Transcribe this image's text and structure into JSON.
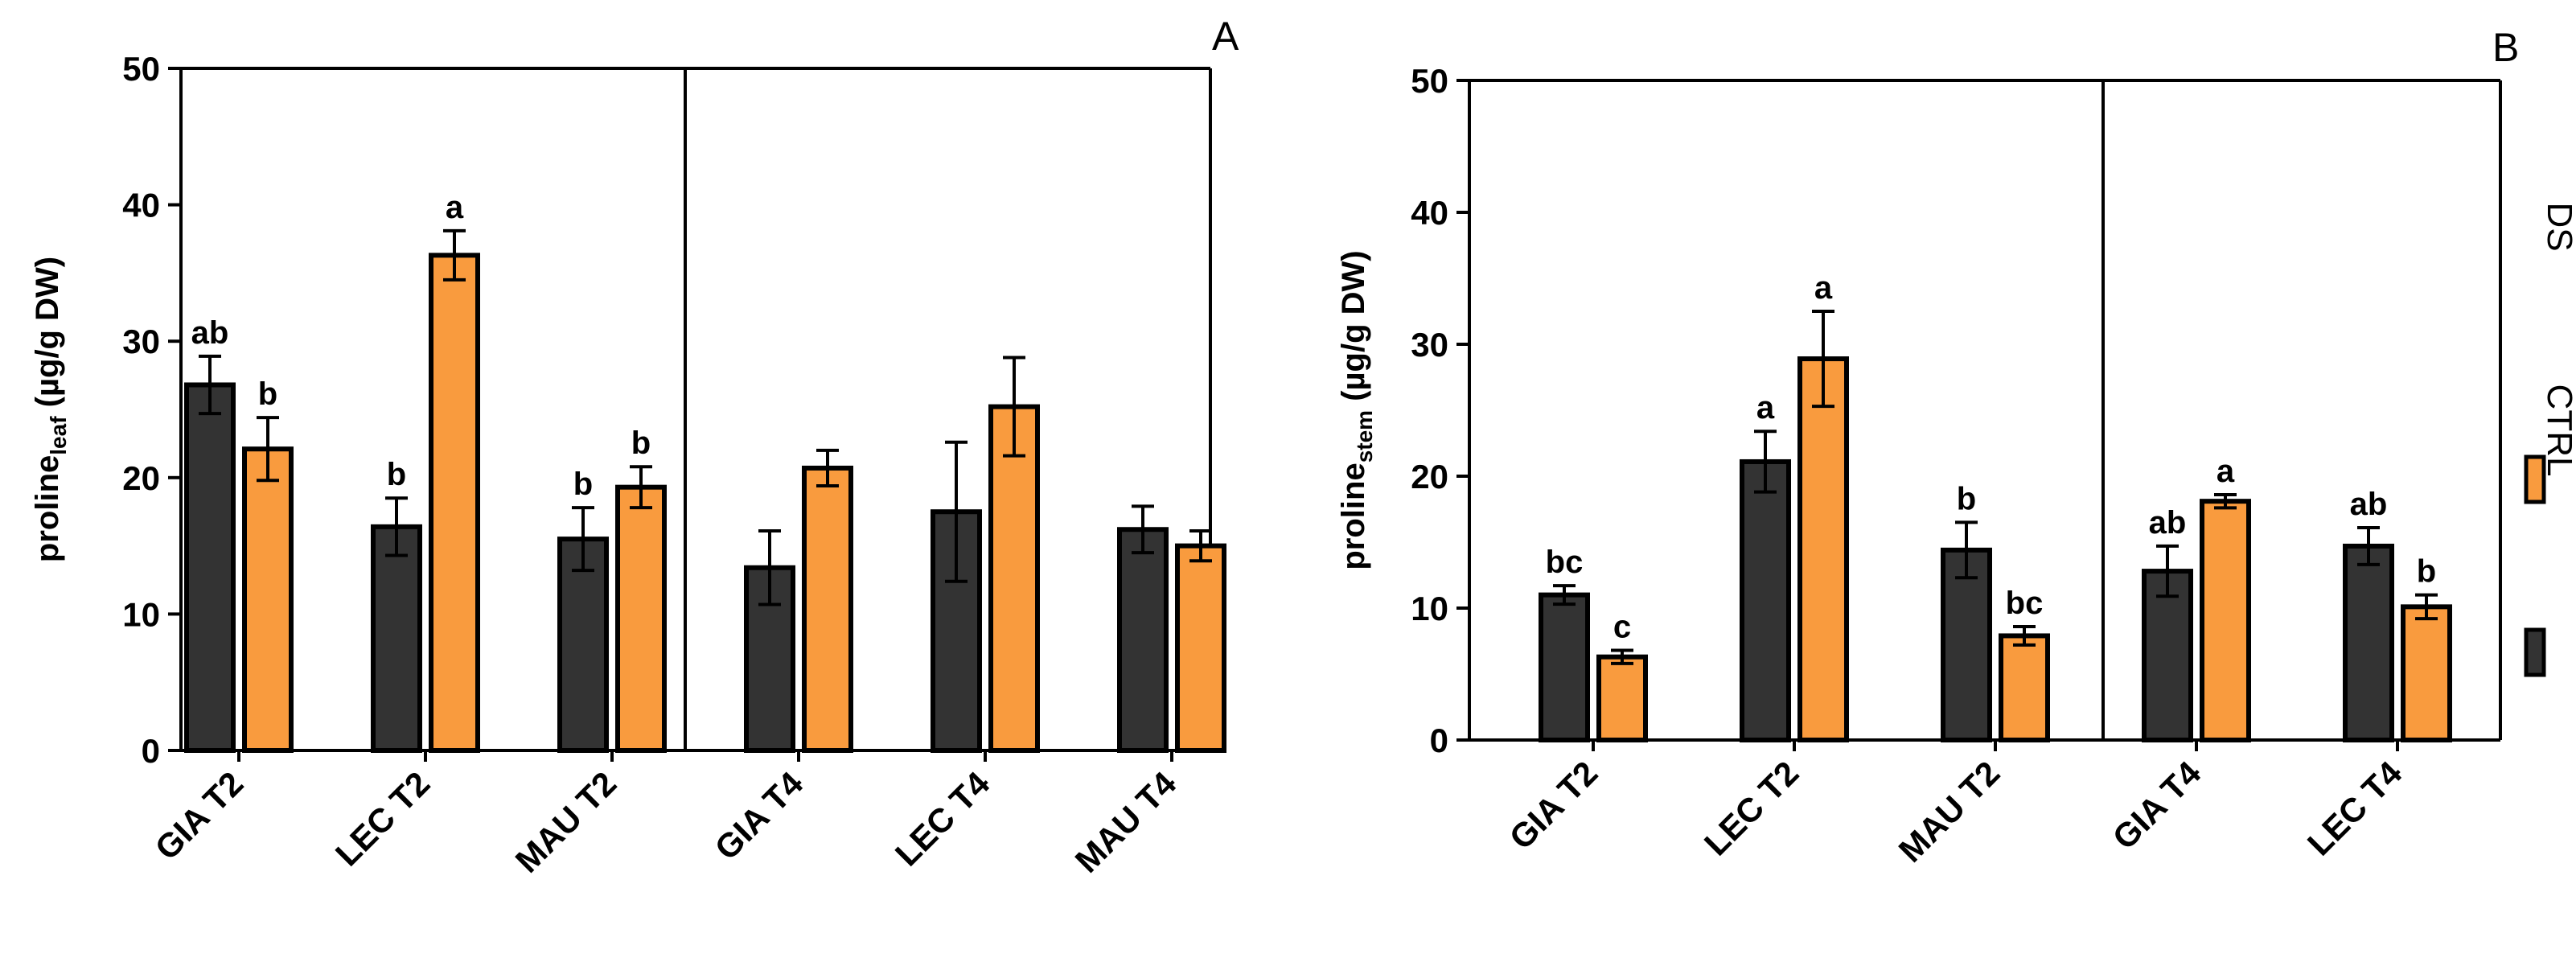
{
  "chart_data": [
    {
      "panel": "A",
      "type": "bar",
      "ylabel": "proline",
      "ylabel_sub": "leaf",
      "ylabel_unit": " (µg/g DW)",
      "ylim": [
        0,
        50
      ],
      "yticks": [
        "0",
        "10",
        "20",
        "30",
        "40",
        "50"
      ],
      "categories": [
        "GIA T2",
        "LEC T2",
        "MAU T2",
        "GIA T4",
        "LEC T4",
        "MAU T4"
      ],
      "series": [
        {
          "name": "CTRL",
          "values": [
            26.8,
            16.4,
            15.5,
            13.4,
            17.5,
            16.2
          ],
          "errors": [
            2.1,
            2.1,
            2.3,
            2.7,
            5.1,
            1.7
          ],
          "labels": [
            "ab",
            "b",
            "b",
            "",
            "",
            ""
          ]
        },
        {
          "name": "DS",
          "values": [
            22.1,
            36.3,
            19.3,
            20.7,
            25.2,
            15.0
          ],
          "errors": [
            2.3,
            1.8,
            1.5,
            1.3,
            3.6,
            1.1
          ],
          "labels": [
            "b",
            "a",
            "b",
            "",
            "",
            ""
          ]
        }
      ],
      "divider_after_index": 2
    },
    {
      "panel": "B",
      "type": "bar",
      "ylabel": "proline",
      "ylabel_sub": "stem",
      "ylabel_unit": " (µg/g DW)",
      "ylim": [
        0,
        50
      ],
      "yticks": [
        "0",
        "10",
        "20",
        "30",
        "40",
        "50"
      ],
      "categories": [
        "GIA T2",
        "LEC T2",
        "MAU T2",
        "GIA T4",
        "LEC T4"
      ],
      "series": [
        {
          "name": "CTRL",
          "values": [
            11.0,
            21.1,
            14.4,
            12.8,
            14.7
          ],
          "errors": [
            0.7,
            2.3,
            2.1,
            1.9,
            1.4
          ],
          "labels": [
            "bc",
            "a",
            "b",
            "ab",
            "ab"
          ]
        },
        {
          "name": "DS",
          "values": [
            6.3,
            28.9,
            7.9,
            18.1,
            10.1
          ],
          "errors": [
            0.5,
            3.6,
            0.7,
            0.5,
            0.9
          ],
          "labels": [
            "c",
            "a",
            "bc",
            "a",
            "b"
          ]
        }
      ],
      "divider_after_index": 2
    }
  ],
  "legend": [
    {
      "name": "DS",
      "color": "#F99B3E"
    },
    {
      "name": "CTRL",
      "color": "#333333"
    }
  ],
  "colors": {
    "CTRL": "#333333",
    "DS": "#F99B3E",
    "axis": "#000000"
  }
}
